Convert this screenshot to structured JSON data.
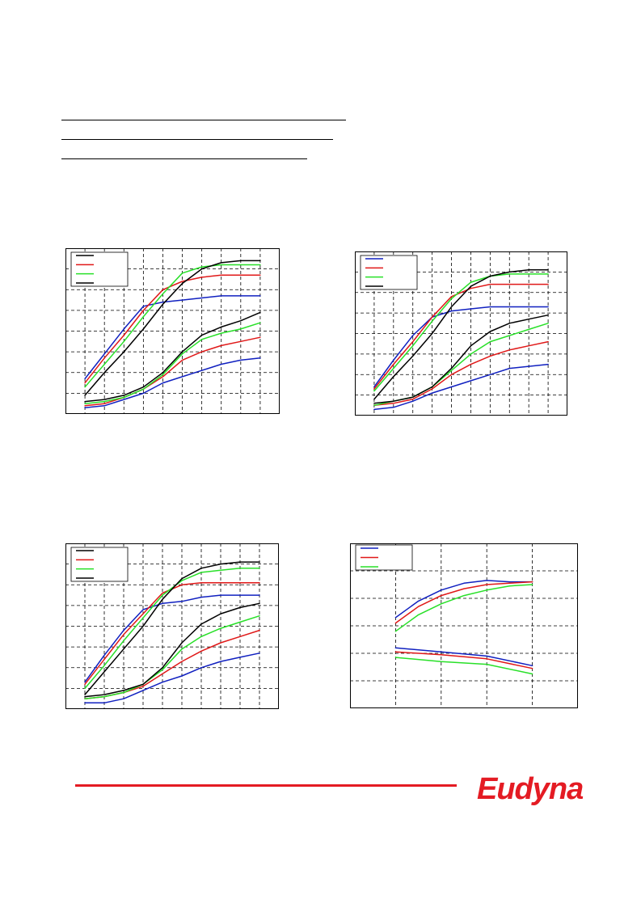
{
  "colors": {
    "blue": "#1020c0",
    "red": "#e01818",
    "green": "#28e028",
    "black": "#000000",
    "brand": "#e41b23"
  },
  "brand": {
    "logo_text": "Eudyna"
  },
  "charts": [
    {
      "name": "chart-top-left",
      "xlim": [
        0,
        11
      ],
      "ylim": [
        0,
        8
      ],
      "xticks": [
        1,
        2,
        3,
        4,
        5,
        6,
        7,
        8,
        9,
        10
      ],
      "yticks": [
        1,
        2,
        3,
        4,
        5,
        6,
        7
      ],
      "legend_colors": [
        "black",
        "red",
        "green",
        "black"
      ],
      "series": [
        {
          "color": "blue",
          "x": [
            1,
            2,
            3,
            4,
            5,
            6,
            7,
            8,
            9,
            10
          ],
          "y": [
            1.7,
            2.9,
            4.1,
            5.2,
            5.4,
            5.5,
            5.6,
            5.7,
            5.7,
            5.7
          ]
        },
        {
          "color": "red",
          "x": [
            1,
            2,
            3,
            4,
            5,
            6,
            7,
            8,
            9,
            10
          ],
          "y": [
            1.5,
            2.7,
            3.8,
            5.0,
            6.0,
            6.4,
            6.6,
            6.7,
            6.7,
            6.7
          ]
        },
        {
          "color": "green",
          "x": [
            1,
            2,
            3,
            4,
            5,
            6,
            7,
            8,
            9,
            10
          ],
          "y": [
            1.3,
            2.4,
            3.5,
            4.7,
            5.8,
            6.8,
            7.1,
            7.2,
            7.2,
            7.2
          ]
        },
        {
          "color": "black",
          "x": [
            1,
            2,
            3,
            4,
            5,
            6,
            7,
            8,
            9,
            10
          ],
          "y": [
            0.9,
            2.0,
            3.0,
            4.1,
            5.3,
            6.3,
            7.0,
            7.3,
            7.4,
            7.4
          ]
        },
        {
          "color": "blue",
          "x": [
            1,
            2,
            3,
            4,
            5,
            6,
            7,
            8,
            9,
            10
          ],
          "y": [
            0.3,
            0.4,
            0.7,
            1.0,
            1.5,
            1.8,
            2.1,
            2.4,
            2.6,
            2.7
          ]
        },
        {
          "color": "red",
          "x": [
            1,
            2,
            3,
            4,
            5,
            6,
            7,
            8,
            9,
            10
          ],
          "y": [
            0.4,
            0.5,
            0.8,
            1.2,
            1.8,
            2.6,
            3.0,
            3.3,
            3.5,
            3.7
          ]
        },
        {
          "color": "green",
          "x": [
            1,
            2,
            3,
            4,
            5,
            6,
            7,
            8,
            9,
            10
          ],
          "y": [
            0.5,
            0.6,
            0.8,
            1.2,
            1.9,
            2.9,
            3.6,
            3.9,
            4.1,
            4.4
          ]
        },
        {
          "color": "black",
          "x": [
            1,
            2,
            3,
            4,
            5,
            6,
            7,
            8,
            9,
            10
          ],
          "y": [
            0.6,
            0.7,
            0.9,
            1.3,
            2.0,
            3.0,
            3.8,
            4.2,
            4.5,
            4.9
          ]
        }
      ]
    },
    {
      "name": "chart-top-right",
      "xlim": [
        0,
        11
      ],
      "ylim": [
        0,
        8
      ],
      "xticks": [
        1,
        2,
        3,
        4,
        5,
        6,
        7,
        8,
        9,
        10
      ],
      "yticks": [
        1,
        2,
        3,
        4,
        5,
        6,
        7
      ],
      "legend_colors": [
        "blue",
        "red",
        "green",
        "black"
      ],
      "series": [
        {
          "color": "blue",
          "x": [
            1,
            2,
            3,
            4,
            5,
            6,
            7,
            8,
            9,
            10
          ],
          "y": [
            1.4,
            2.7,
            3.9,
            4.8,
            5.1,
            5.2,
            5.3,
            5.3,
            5.3,
            5.3
          ]
        },
        {
          "color": "red",
          "x": [
            1,
            2,
            3,
            4,
            5,
            6,
            7,
            8,
            9,
            10
          ],
          "y": [
            1.3,
            2.5,
            3.6,
            4.8,
            5.8,
            6.2,
            6.4,
            6.4,
            6.4,
            6.4
          ]
        },
        {
          "color": "green",
          "x": [
            1,
            2,
            3,
            4,
            5,
            6,
            7,
            8,
            9,
            10
          ],
          "y": [
            1.2,
            2.3,
            3.4,
            4.6,
            5.7,
            6.5,
            6.8,
            6.9,
            6.9,
            6.9
          ]
        },
        {
          "color": "black",
          "x": [
            1,
            2,
            3,
            4,
            5,
            6,
            7,
            8,
            9,
            10
          ],
          "y": [
            0.8,
            1.9,
            2.9,
            4.0,
            5.3,
            6.3,
            6.8,
            7.0,
            7.1,
            7.1
          ]
        },
        {
          "color": "blue",
          "x": [
            1,
            2,
            3,
            4,
            5,
            6,
            7,
            8,
            9,
            10
          ],
          "y": [
            0.3,
            0.4,
            0.7,
            1.1,
            1.4,
            1.7,
            2.0,
            2.3,
            2.4,
            2.5
          ]
        },
        {
          "color": "red",
          "x": [
            1,
            2,
            3,
            4,
            5,
            6,
            7,
            8,
            9,
            10
          ],
          "y": [
            0.5,
            0.6,
            0.8,
            1.3,
            2.0,
            2.5,
            2.9,
            3.2,
            3.4,
            3.6
          ]
        },
        {
          "color": "green",
          "x": [
            1,
            2,
            3,
            4,
            5,
            6,
            7,
            8,
            9,
            10
          ],
          "y": [
            0.5,
            0.7,
            0.9,
            1.4,
            2.2,
            3.0,
            3.6,
            3.9,
            4.2,
            4.5
          ]
        },
        {
          "color": "black",
          "x": [
            1,
            2,
            3,
            4,
            5,
            6,
            7,
            8,
            9,
            10
          ],
          "y": [
            0.6,
            0.7,
            0.9,
            1.4,
            2.3,
            3.4,
            4.1,
            4.5,
            4.7,
            4.9
          ]
        }
      ]
    },
    {
      "name": "chart-bottom-left",
      "xlim": [
        0,
        11
      ],
      "ylim": [
        0,
        8
      ],
      "xticks": [
        1,
        2,
        3,
        4,
        5,
        6,
        7,
        8,
        9,
        10
      ],
      "yticks": [
        1,
        2,
        3,
        4,
        5,
        6,
        7
      ],
      "legend_colors": [
        "black",
        "red",
        "green",
        "black"
      ],
      "series": [
        {
          "color": "blue",
          "x": [
            1,
            2,
            3,
            4,
            5,
            6,
            7,
            8,
            9,
            10
          ],
          "y": [
            1.3,
            2.6,
            3.8,
            4.8,
            5.1,
            5.2,
            5.4,
            5.5,
            5.5,
            5.5
          ]
        },
        {
          "color": "red",
          "x": [
            1,
            2,
            3,
            4,
            5,
            6,
            7,
            8,
            9,
            10
          ],
          "y": [
            1.2,
            2.4,
            3.6,
            4.6,
            5.6,
            6.0,
            6.1,
            6.1,
            6.1,
            6.1
          ]
        },
        {
          "color": "green",
          "x": [
            1,
            2,
            3,
            4,
            5,
            6,
            7,
            8,
            9,
            10
          ],
          "y": [
            1.0,
            2.1,
            3.3,
            4.4,
            5.5,
            6.2,
            6.6,
            6.7,
            6.8,
            6.8
          ]
        },
        {
          "color": "black",
          "x": [
            1,
            2,
            3,
            4,
            5,
            6,
            7,
            8,
            9,
            10
          ],
          "y": [
            0.7,
            1.8,
            2.9,
            4.0,
            5.3,
            6.3,
            6.8,
            7.0,
            7.1,
            7.1
          ]
        },
        {
          "color": "blue",
          "x": [
            1,
            2,
            3,
            4,
            5,
            6,
            7,
            8,
            9,
            10
          ],
          "y": [
            0.3,
            0.3,
            0.5,
            0.9,
            1.3,
            1.6,
            2.0,
            2.3,
            2.5,
            2.7
          ]
        },
        {
          "color": "red",
          "x": [
            1,
            2,
            3,
            4,
            5,
            6,
            7,
            8,
            9,
            10
          ],
          "y": [
            0.5,
            0.6,
            0.8,
            1.1,
            1.7,
            2.3,
            2.8,
            3.2,
            3.5,
            3.8
          ]
        },
        {
          "color": "green",
          "x": [
            1,
            2,
            3,
            4,
            5,
            6,
            7,
            8,
            9,
            10
          ],
          "y": [
            0.5,
            0.6,
            0.8,
            1.2,
            1.9,
            2.9,
            3.5,
            3.9,
            4.2,
            4.5
          ]
        },
        {
          "color": "black",
          "x": [
            1,
            2,
            3,
            4,
            5,
            6,
            7,
            8,
            9,
            10
          ],
          "y": [
            0.6,
            0.7,
            0.9,
            1.2,
            2.0,
            3.2,
            4.1,
            4.6,
            4.9,
            5.1
          ]
        }
      ]
    },
    {
      "name": "chart-bottom-right",
      "xlim": [
        0,
        5
      ],
      "ylim": [
        0,
        6
      ],
      "xticks": [
        1,
        2,
        3,
        4
      ],
      "yticks": [
        1,
        2,
        3,
        4,
        5
      ],
      "legend_colors": [
        "blue",
        "red",
        "green"
      ],
      "series": [
        {
          "color": "blue",
          "x": [
            1,
            1.5,
            2,
            2.5,
            3,
            3.5,
            4
          ],
          "y": [
            3.3,
            3.9,
            4.3,
            4.55,
            4.65,
            4.6,
            4.6
          ]
        },
        {
          "color": "red",
          "x": [
            1,
            1.5,
            2,
            2.5,
            3,
            3.5,
            4
          ],
          "y": [
            3.1,
            3.7,
            4.1,
            4.35,
            4.5,
            4.55,
            4.6
          ]
        },
        {
          "color": "green",
          "x": [
            1,
            1.5,
            2,
            2.5,
            3,
            3.5,
            4
          ],
          "y": [
            2.8,
            3.4,
            3.8,
            4.1,
            4.3,
            4.45,
            4.5
          ]
        },
        {
          "color": "blue",
          "x": [
            1,
            2,
            3,
            4
          ],
          "y": [
            2.2,
            2.05,
            1.9,
            1.55
          ]
        },
        {
          "color": "red",
          "x": [
            1,
            2,
            3,
            4
          ],
          "y": [
            2.05,
            1.95,
            1.8,
            1.45
          ]
        },
        {
          "color": "green",
          "x": [
            1,
            2,
            3,
            4
          ],
          "y": [
            1.85,
            1.7,
            1.6,
            1.25
          ]
        }
      ]
    }
  ]
}
